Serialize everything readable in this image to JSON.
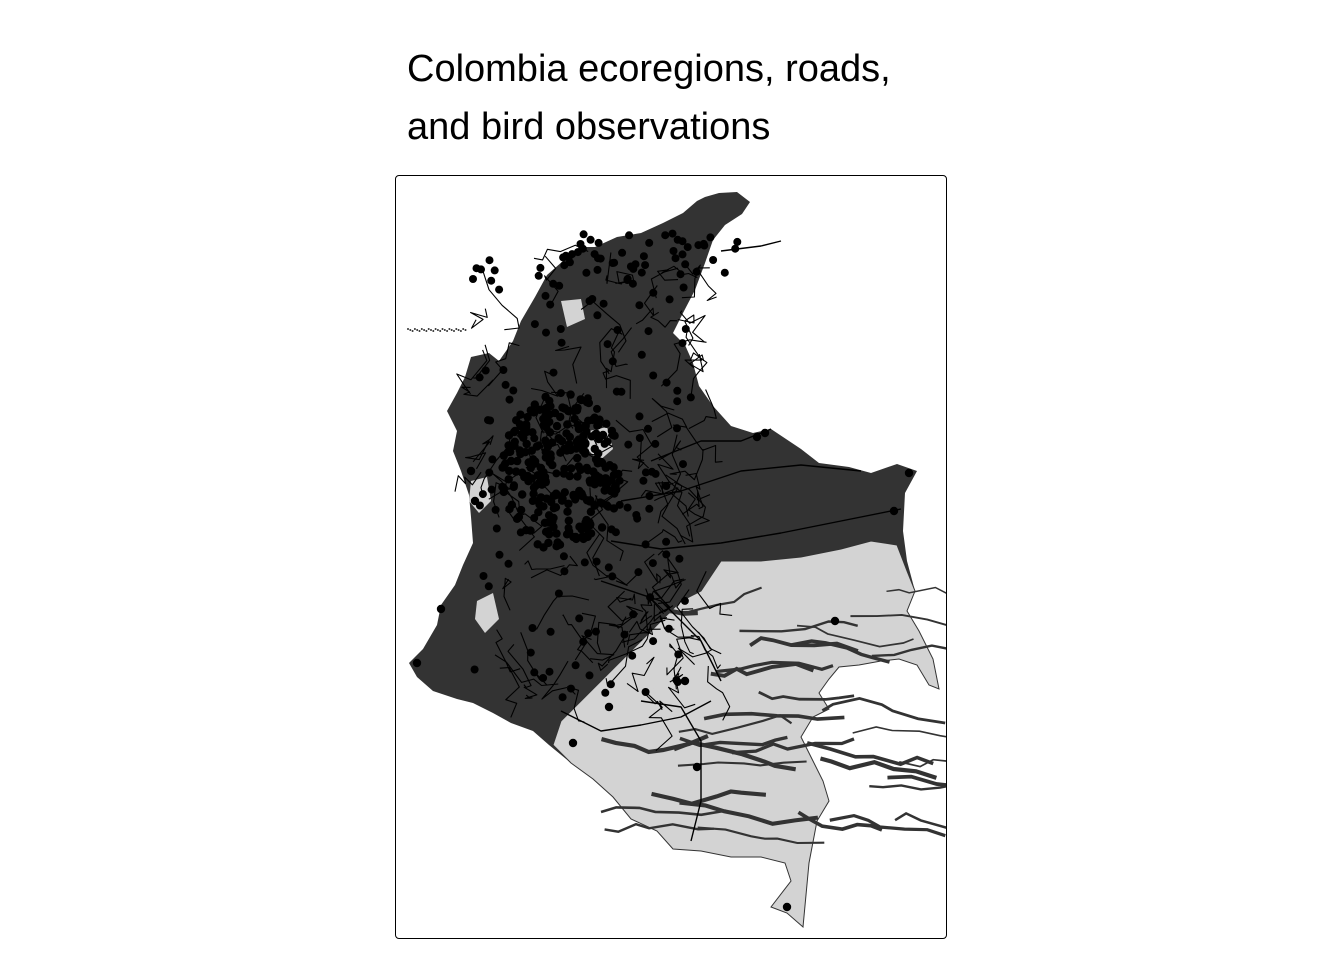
{
  "map": {
    "title_lines": [
      "Colombia ecoregions, roads,",
      "and bird observations"
    ],
    "layers": {
      "ecoregions_dark": {
        "fill": "#333333"
      },
      "ecoregions_light": {
        "fill": "#d3d3d3"
      },
      "roads": {
        "stroke": "#000000"
      },
      "bird_observations": {
        "fill": "#000000"
      }
    },
    "frame": {
      "border": "#000000",
      "background": "#ffffff"
    }
  }
}
